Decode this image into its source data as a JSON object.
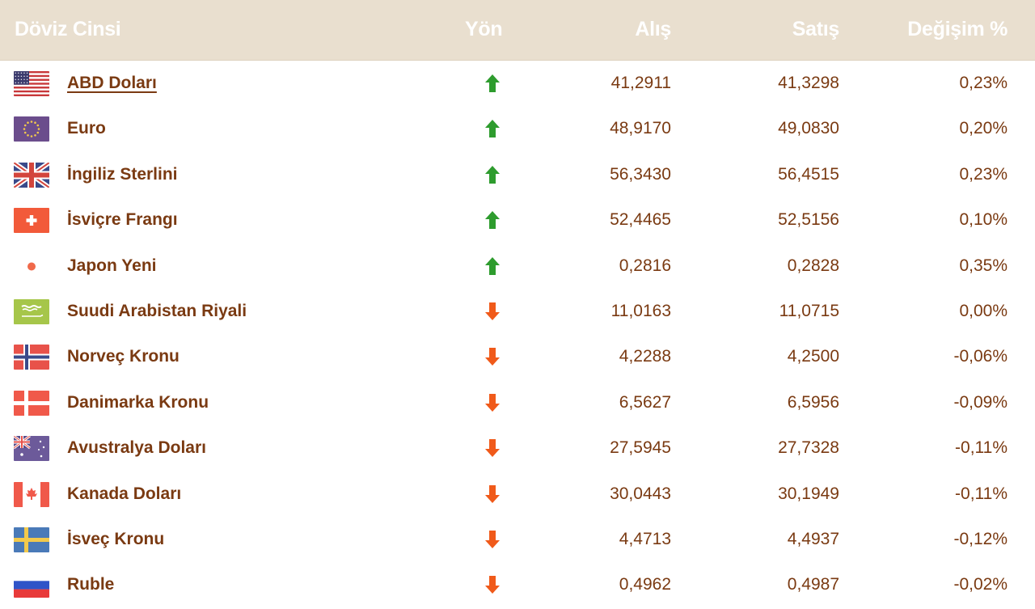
{
  "header": {
    "currency": "Döviz Cinsi",
    "direction": "Yön",
    "buy": "Alış",
    "sell": "Satış",
    "change": "Değişim %"
  },
  "colors": {
    "header_bg": "#e9dfcf",
    "text": "#7a3a12",
    "up": "#2e9c2e",
    "down": "#f05a1a"
  },
  "rows": [
    {
      "name": "ABD Doları",
      "flag": "us-flag-icon",
      "direction": "up",
      "buy": "41,2911",
      "sell": "41,3298",
      "change": "0,23%"
    },
    {
      "name": "Euro",
      "flag": "eu-flag-icon",
      "direction": "up",
      "buy": "48,9170",
      "sell": "49,0830",
      "change": "0,20%"
    },
    {
      "name": "İngiliz Sterlini",
      "flag": "uk-flag-icon",
      "direction": "up",
      "buy": "56,3430",
      "sell": "56,4515",
      "change": "0,23%"
    },
    {
      "name": "İsviçre Frangı",
      "flag": "ch-flag-icon",
      "direction": "up",
      "buy": "52,4465",
      "sell": "52,5156",
      "change": "0,10%"
    },
    {
      "name": "Japon Yeni",
      "flag": "jp-flag-icon",
      "direction": "up",
      "buy": "0,2816",
      "sell": "0,2828",
      "change": "0,35%"
    },
    {
      "name": "Suudi Arabistan Riyali",
      "flag": "sa-flag-icon",
      "direction": "down",
      "buy": "11,0163",
      "sell": "11,0715",
      "change": "0,00%"
    },
    {
      "name": "Norveç Kronu",
      "flag": "no-flag-icon",
      "direction": "down",
      "buy": "4,2288",
      "sell": "4,2500",
      "change": "-0,06%"
    },
    {
      "name": "Danimarka Kronu",
      "flag": "dk-flag-icon",
      "direction": "down",
      "buy": "6,5627",
      "sell": "6,5956",
      "change": "-0,09%"
    },
    {
      "name": "Avustralya Doları",
      "flag": "au-flag-icon",
      "direction": "down",
      "buy": "27,5945",
      "sell": "27,7328",
      "change": "-0,11%"
    },
    {
      "name": "Kanada Doları",
      "flag": "ca-flag-icon",
      "direction": "down",
      "buy": "30,0443",
      "sell": "30,1949",
      "change": "-0,11%"
    },
    {
      "name": "İsveç Kronu",
      "flag": "se-flag-icon",
      "direction": "down",
      "buy": "4,4713",
      "sell": "4,4937",
      "change": "-0,12%"
    },
    {
      "name": "Ruble",
      "flag": "ru-flag-icon",
      "direction": "down",
      "buy": "0,4962",
      "sell": "0,4987",
      "change": "-0,02%"
    }
  ]
}
